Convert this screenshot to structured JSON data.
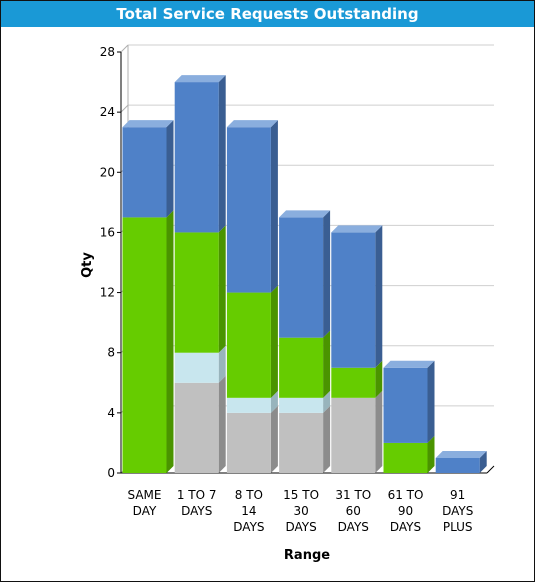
{
  "chart_data": {
    "type": "bar",
    "stacked": true,
    "style": "3d",
    "title": "Total Service Requests Outstanding",
    "xlabel": "Range",
    "ylabel": "Qty",
    "ylim": [
      0,
      28
    ],
    "yticks": [
      0,
      4,
      8,
      12,
      16,
      20,
      24,
      28
    ],
    "grid": true,
    "legend": "none",
    "categories": [
      [
        "SAME",
        "DAY"
      ],
      [
        "1 TO 7",
        "DAYS"
      ],
      [
        "8 TO",
        "14",
        "DAYS"
      ],
      [
        "15 TO",
        "30",
        "DAYS"
      ],
      [
        "31 TO",
        "60",
        "DAYS"
      ],
      [
        "61 TO",
        "90",
        "DAYS"
      ],
      [
        "91",
        "DAYS",
        "PLUS"
      ]
    ],
    "series": [
      {
        "color": "#c0c0c0",
        "side": "#8c8c8c",
        "values": [
          0,
          6,
          4,
          4,
          5,
          0,
          0
        ]
      },
      {
        "color": "#c8e6ee",
        "side": "#98b4bc",
        "values": [
          0,
          2,
          1,
          1,
          0,
          0,
          0
        ]
      },
      {
        "color": "#66cc00",
        "side": "#4a9400",
        "values": [
          17,
          8,
          7,
          4,
          2,
          2,
          0
        ]
      },
      {
        "color": "#4f81c8",
        "side": "#3a5e92",
        "values": [
          6,
          10,
          11,
          8,
          9,
          5,
          1
        ]
      }
    ],
    "top_color": "#8aaede"
  }
}
